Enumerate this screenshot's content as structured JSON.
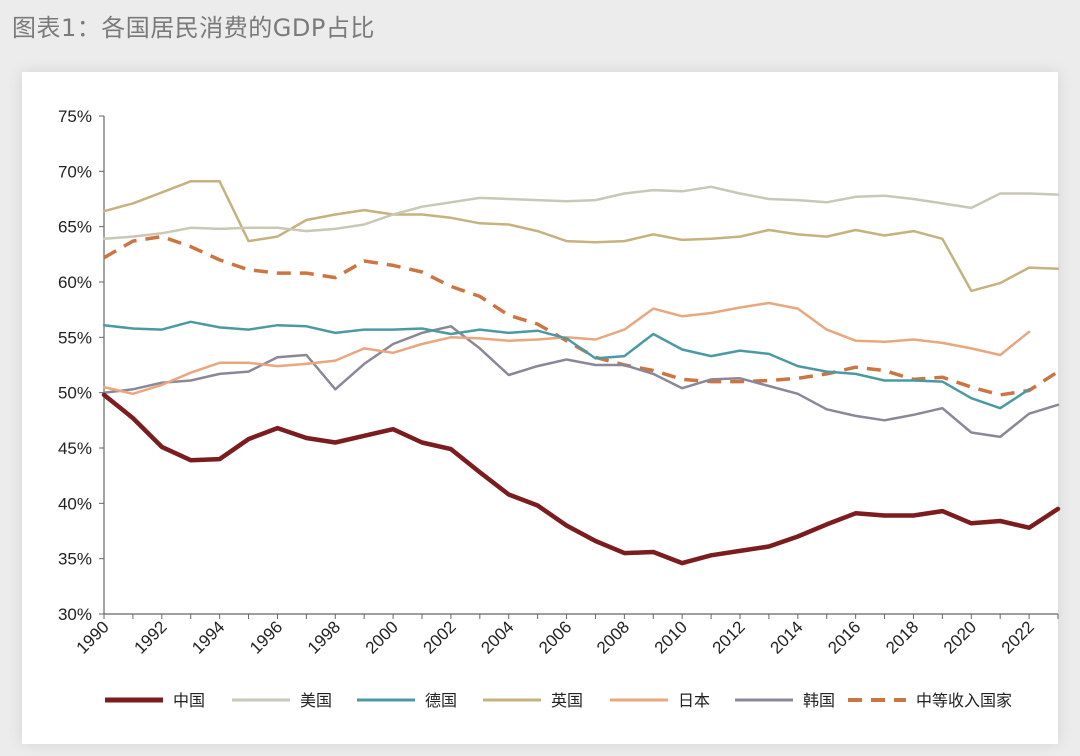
{
  "title": "图表1：各国居民消费的GDP占比",
  "chart_data": {
    "type": "line",
    "title": "图表1：各国居民消费的GDP占比",
    "xlabel": "",
    "ylabel": "",
    "ylim": [
      30,
      75
    ],
    "xlim": [
      1990,
      2023
    ],
    "yticks": [
      "30%",
      "35%",
      "40%",
      "45%",
      "50%",
      "55%",
      "60%",
      "65%",
      "70%",
      "75%"
    ],
    "xticks": [
      "1990",
      "1992",
      "1994",
      "1996",
      "1998",
      "2000",
      "2002",
      "2004",
      "2006",
      "2008",
      "2010",
      "2012",
      "2014",
      "2016",
      "2018",
      "2020",
      "2022"
    ],
    "x": [
      1990,
      1991,
      1992,
      1993,
      1994,
      1995,
      1996,
      1997,
      1998,
      1999,
      2000,
      2001,
      2002,
      2003,
      2004,
      2005,
      2006,
      2007,
      2008,
      2009,
      2010,
      2011,
      2012,
      2013,
      2014,
      2015,
      2016,
      2017,
      2018,
      2019,
      2020,
      2021,
      2022,
      2023
    ],
    "grid": false,
    "legend_position": "bottom",
    "series": [
      {
        "name": "中国",
        "color": "#7b1c1f",
        "dash": false,
        "width": 4.5,
        "values": [
          49.8,
          47.7,
          45.1,
          43.9,
          44.0,
          45.8,
          46.8,
          45.9,
          45.5,
          46.1,
          46.7,
          45.5,
          44.9,
          42.8,
          40.8,
          39.8,
          38.0,
          36.6,
          35.5,
          35.6,
          34.6,
          35.3,
          35.7,
          36.1,
          37.0,
          38.1,
          39.1,
          38.9,
          38.9,
          39.3,
          38.2,
          38.4,
          37.8,
          39.5
        ]
      },
      {
        "name": "美国",
        "color": "#c9c7b6",
        "dash": false,
        "width": 2.5,
        "values": [
          63.9,
          64.1,
          64.4,
          64.9,
          64.8,
          64.9,
          64.9,
          64.6,
          64.8,
          65.2,
          66.1,
          66.8,
          67.2,
          67.6,
          67.5,
          67.4,
          67.3,
          67.4,
          68.0,
          68.3,
          68.2,
          68.6,
          68.0,
          67.5,
          67.4,
          67.2,
          67.7,
          67.8,
          67.5,
          67.1,
          66.7,
          68.0,
          68.0,
          67.9
        ]
      },
      {
        "name": "德国",
        "color": "#4b9aa3",
        "dash": false,
        "width": 2.5,
        "values": [
          56.1,
          55.8,
          55.7,
          56.4,
          55.9,
          55.7,
          56.1,
          56.0,
          55.4,
          55.7,
          55.7,
          55.8,
          55.3,
          55.7,
          55.4,
          55.6,
          54.9,
          53.1,
          53.3,
          55.3,
          53.9,
          53.3,
          53.8,
          53.5,
          52.4,
          51.9,
          51.7,
          51.1,
          51.1,
          51.0,
          49.5,
          48.6,
          50.3,
          null
        ]
      },
      {
        "name": "英国",
        "color": "#c6b27e",
        "dash": false,
        "width": 2.5,
        "values": [
          66.4,
          67.1,
          68.1,
          69.1,
          69.1,
          63.7,
          64.1,
          65.6,
          66.1,
          66.5,
          66.1,
          66.1,
          65.8,
          65.3,
          65.2,
          64.6,
          63.7,
          63.6,
          63.7,
          64.3,
          63.8,
          63.9,
          64.1,
          64.7,
          64.3,
          64.1,
          64.7,
          64.2,
          64.6,
          63.9,
          59.2,
          59.9,
          61.3,
          61.2
        ]
      },
      {
        "name": "日本",
        "color": "#e8a77e",
        "dash": false,
        "width": 2.5,
        "values": [
          50.5,
          49.9,
          50.7,
          51.8,
          52.7,
          52.7,
          52.4,
          52.6,
          52.9,
          54.0,
          53.6,
          54.4,
          55.0,
          54.9,
          54.7,
          54.8,
          55.0,
          54.8,
          55.7,
          57.6,
          56.9,
          57.2,
          57.7,
          58.1,
          57.6,
          55.7,
          54.7,
          54.6,
          54.8,
          54.5,
          54.0,
          53.4,
          55.5,
          null
        ]
      },
      {
        "name": "韩国",
        "color": "#8c8798",
        "dash": false,
        "width": 2.5,
        "values": [
          50.0,
          50.3,
          50.9,
          51.1,
          51.7,
          51.9,
          53.2,
          53.4,
          50.3,
          52.6,
          54.4,
          55.4,
          56.0,
          54.0,
          51.6,
          52.4,
          53.0,
          52.5,
          52.5,
          51.7,
          50.4,
          51.2,
          51.3,
          50.6,
          49.9,
          48.5,
          47.9,
          47.5,
          48.0,
          48.6,
          46.4,
          46.0,
          48.1,
          48.9
        ]
      },
      {
        "name": "中等收入国家",
        "color": "#cd7443",
        "dash": true,
        "width": 3.5,
        "values": [
          62.2,
          63.7,
          64.1,
          63.2,
          62.0,
          61.1,
          60.8,
          60.8,
          60.4,
          61.9,
          61.5,
          60.9,
          59.6,
          58.7,
          57.0,
          56.2,
          54.7,
          53.2,
          52.5,
          52.0,
          51.2,
          51.0,
          51.0,
          51.1,
          51.3,
          51.7,
          52.3,
          52.0,
          51.2,
          51.4,
          50.5,
          49.8,
          50.2,
          51.9
        ]
      }
    ]
  }
}
